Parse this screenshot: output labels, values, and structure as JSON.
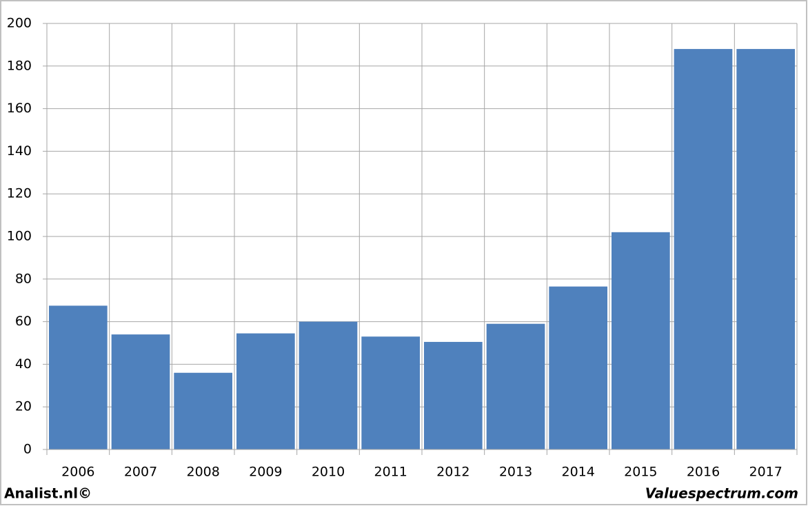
{
  "chart_data": {
    "type": "bar",
    "categories": [
      "2006",
      "2007",
      "2008",
      "2009",
      "2010",
      "2011",
      "2012",
      "2013",
      "2014",
      "2015",
      "2016",
      "2017"
    ],
    "values": [
      67.5,
      54,
      36,
      54.5,
      60,
      53,
      50.5,
      59,
      76.5,
      102,
      188,
      188
    ],
    "color": "#4f81bd",
    "ylim": [
      0,
      200
    ],
    "yticks": [
      0,
      20,
      40,
      60,
      80,
      100,
      120,
      140,
      160,
      180,
      200
    ],
    "grid": true,
    "credit": "Analist.nl©",
    "source": "Valuespectrum.com"
  }
}
